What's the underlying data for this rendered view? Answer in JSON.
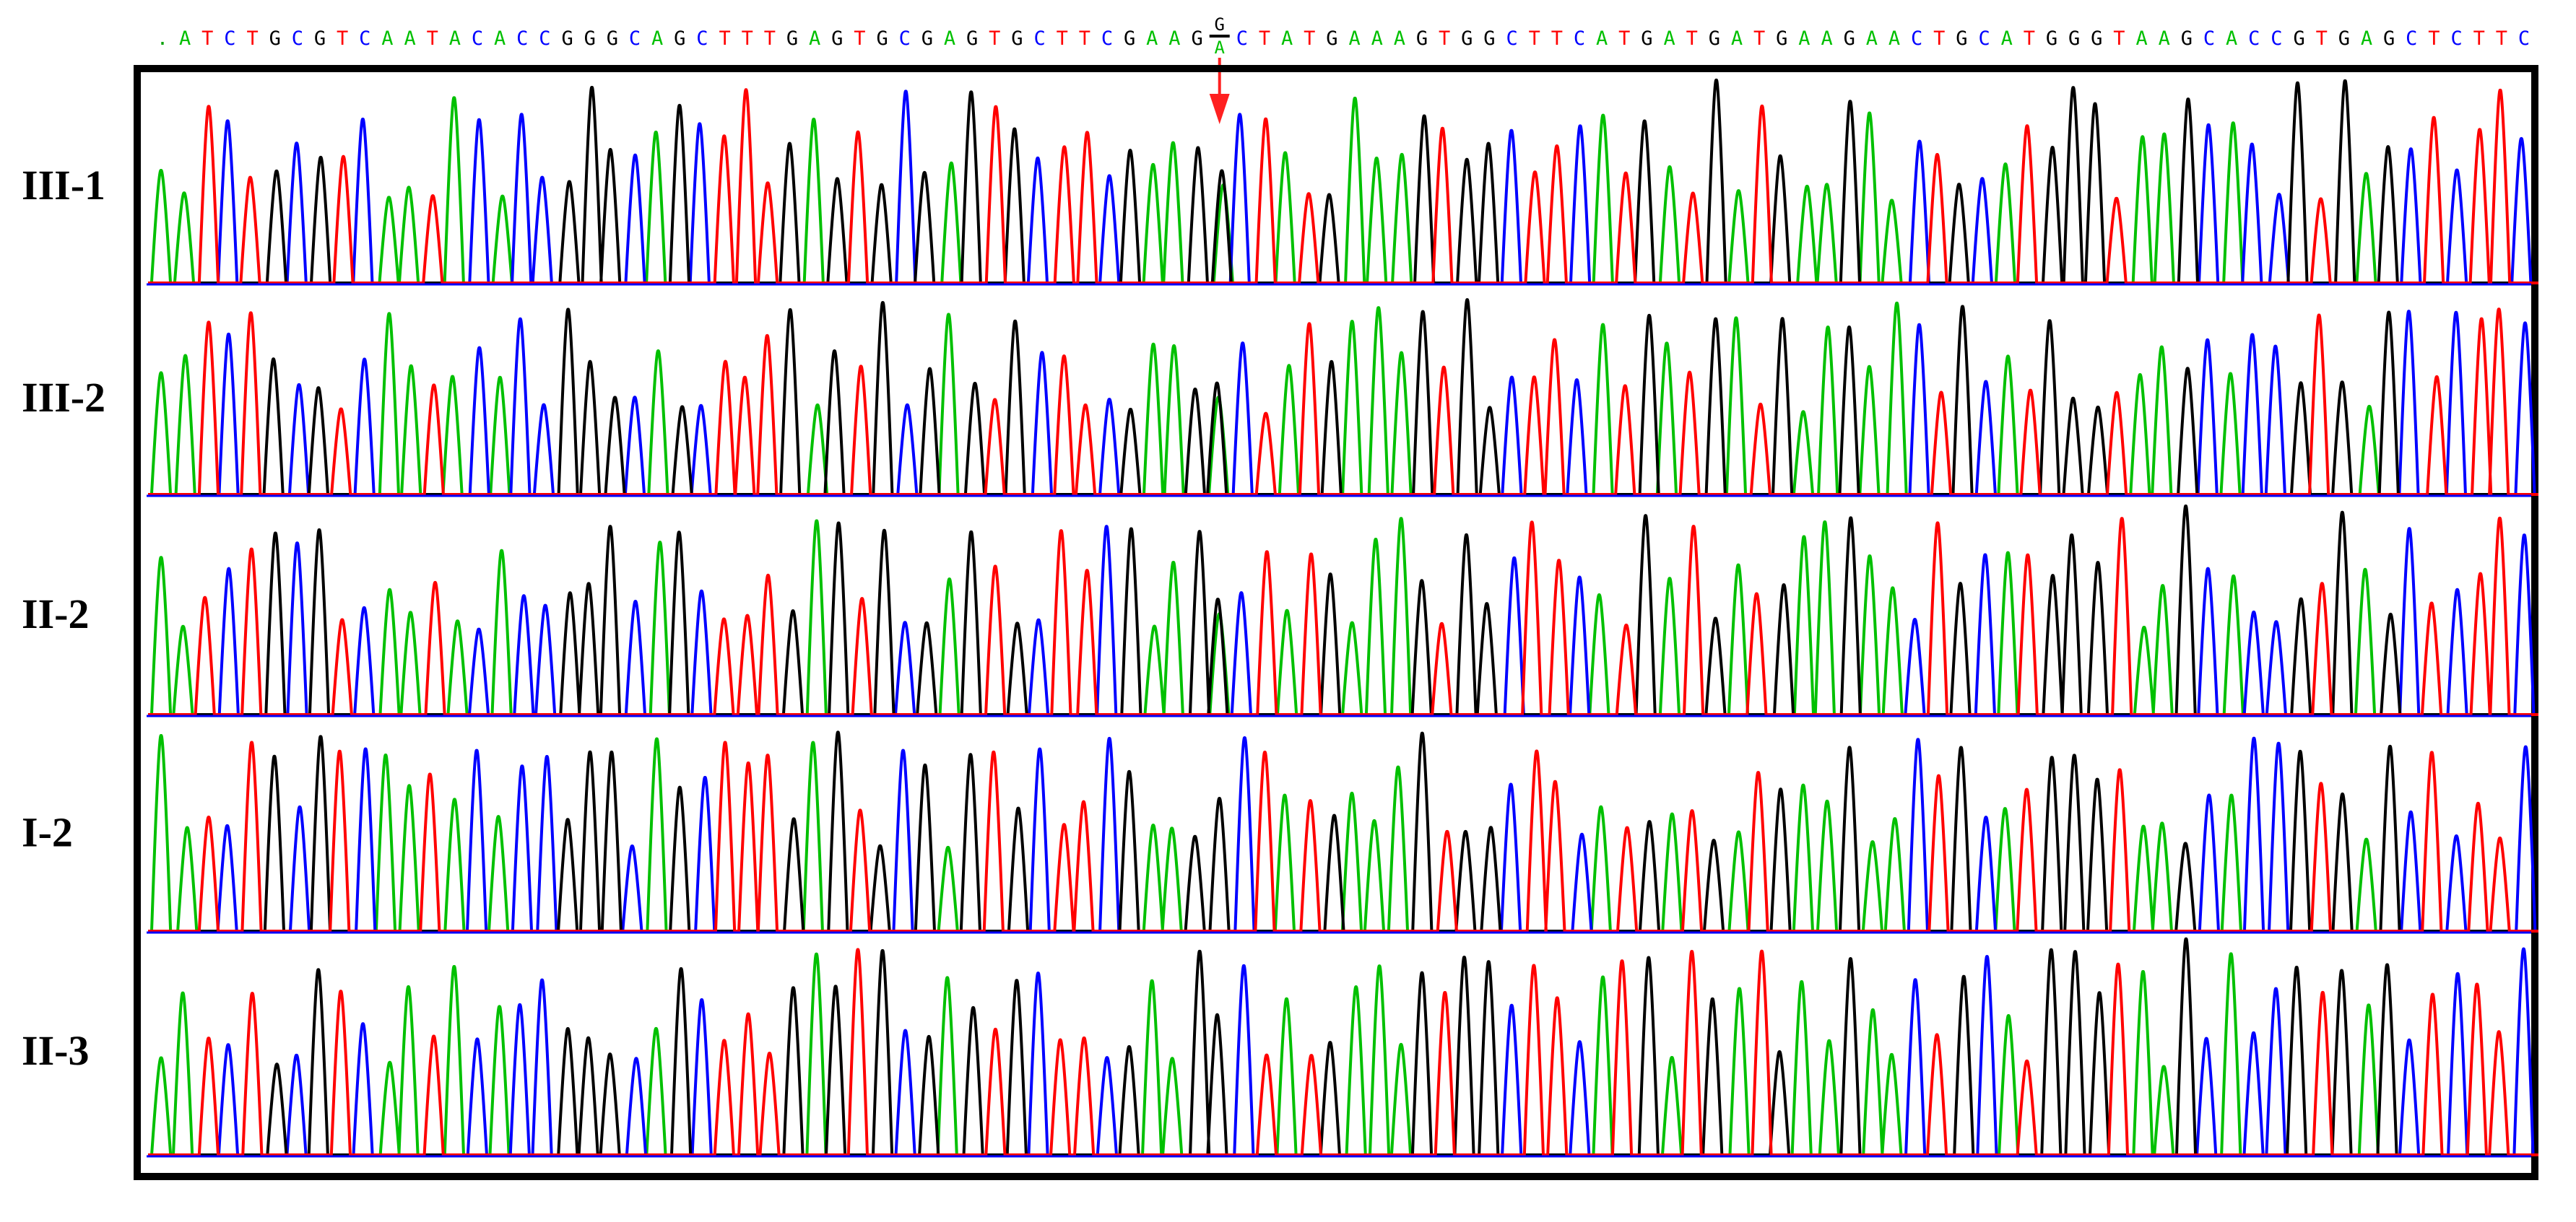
{
  "chart_data": {
    "type": "line",
    "title": "",
    "xlabel": "",
    "ylabel": "",
    "reference_sequence": ".ATCTGCGTCAATACACCGGGCAGCTTTGAGTGCGAGTGCTTCGAAG",
    "variant_site": {
      "top": "G",
      "bottom": "A"
    },
    "reference_sequence_after": "CTATGAAAGTGGCTTCATGATGATGAAGAACTGCATGGGTAAGCACCGTGAGCTCTTC",
    "variant_index": 46,
    "variant_marker": "red-arrow-down",
    "base_colors": {
      "A": "#00c000",
      "C": "#0000ff",
      "G": "#000000",
      "T": "#ff0000"
    },
    "samples": [
      {
        "name": "III-1",
        "genotype": "heterozygous G/A",
        "het": true,
        "seed": 11
      },
      {
        "name": "III-2",
        "genotype": "heterozygous G/A",
        "het": true,
        "seed": 23
      },
      {
        "name": "II-2",
        "genotype": "heterozygous G/A",
        "het": true,
        "seed": 37
      },
      {
        "name": "I-2",
        "genotype": "homozygous G",
        "het": false,
        "seed": 41
      },
      {
        "name": "II-3",
        "genotype": "homozygous G",
        "het": false,
        "seed": 53
      }
    ],
    "grid": false,
    "legend": "none"
  }
}
